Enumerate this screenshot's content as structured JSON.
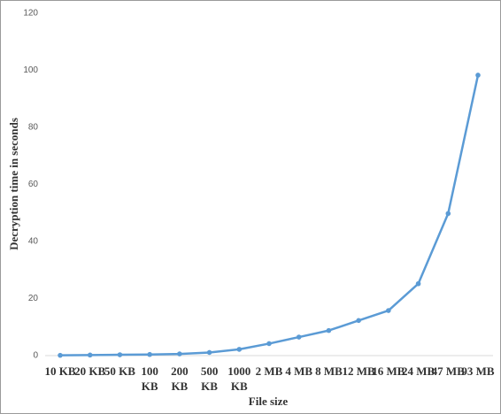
{
  "chart_data": {
    "type": "line",
    "x_label": "File size",
    "y_label": "Decryption time in seconds",
    "categories": [
      "10 KB",
      "20 KB",
      "50 KB",
      "100 KB",
      "200 KB",
      "500 KB",
      "1000 KB",
      "2 MB",
      "4 MB",
      "8 MB",
      "12 MB",
      "16 MB",
      "24 MB",
      "47 MB",
      "93 MB"
    ],
    "values": [
      0.1,
      0.2,
      0.3,
      0.4,
      0.6,
      1.1,
      2.2,
      4.2,
      6.5,
      8.8,
      12.3,
      15.8,
      25.2,
      49.8,
      98.3
    ],
    "color": "#5b9bd5",
    "ylim": [
      0,
      120
    ],
    "yticks": [
      0,
      20,
      40,
      60,
      80,
      100,
      120
    ],
    "grid": false
  }
}
